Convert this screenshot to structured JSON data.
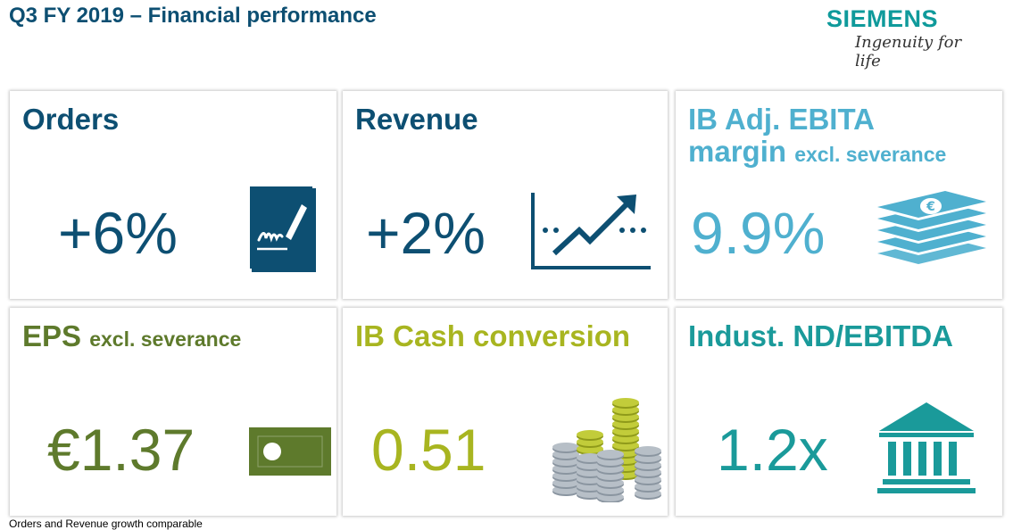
{
  "header": {
    "title": "Q3 FY 2019 – Financial performance"
  },
  "logo": {
    "word": "SIEMENS",
    "tagline": "Ingenuity for life"
  },
  "tiles": [
    {
      "title": "Orders",
      "subtitle": "",
      "value": "+6%",
      "color": "#0d4f72",
      "icon": "signed-document-icon"
    },
    {
      "title": "Revenue",
      "subtitle": "",
      "value": "+2%",
      "color": "#0d4f72",
      "icon": "rising-trend-chart-icon"
    },
    {
      "title": "IB Adj. EBITA",
      "title_line2": "margin",
      "subtitle": "excl. severance",
      "value": "9.9%",
      "color": "#4fb0cf",
      "icon": "euro-banknote-stack-icon"
    },
    {
      "title": "EPS",
      "subtitle": "excl. severance",
      "value": "€1.37",
      "color": "#5e7a2c",
      "icon": "banknote-icon"
    },
    {
      "title": "IB Cash conversion",
      "subtitle": "",
      "value": "0.51",
      "color": "#a8b520",
      "icon": "coin-stacks-icon"
    },
    {
      "title": "Indust. ND/EBITDA",
      "subtitle": "",
      "value": "1.2x",
      "color": "#1a9a9a",
      "icon": "bank-building-icon"
    }
  ],
  "footnote": "Orders and Revenue growth comparable"
}
